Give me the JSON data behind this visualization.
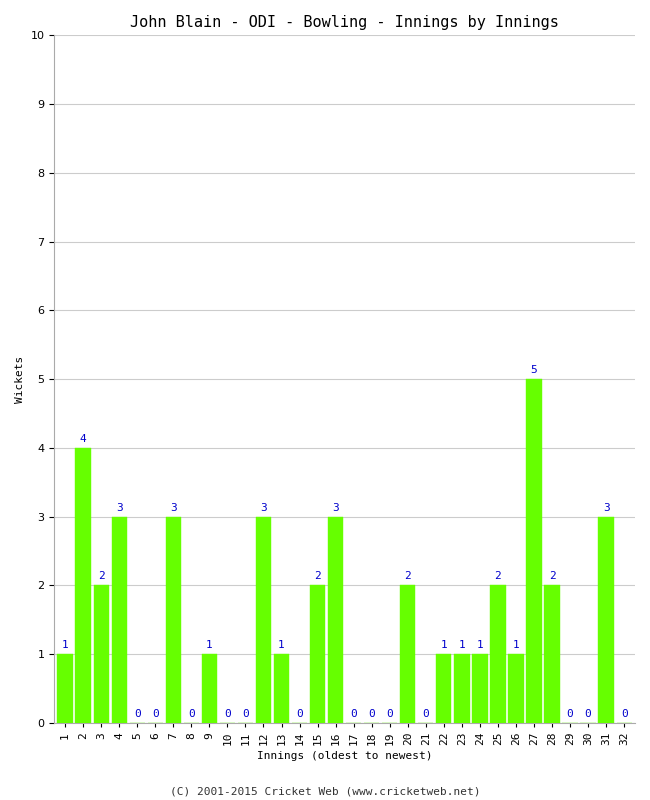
{
  "title": "John Blain - ODI - Bowling - Innings by Innings",
  "xlabel": "Innings (oldest to newest)",
  "ylabel": "Wickets",
  "categories": [
    "1",
    "2",
    "3",
    "4",
    "5",
    "6",
    "7",
    "8",
    "9",
    "10",
    "11",
    "12",
    "13",
    "14",
    "15",
    "16",
    "17",
    "18",
    "19",
    "20",
    "21",
    "22",
    "23",
    "24",
    "25",
    "26",
    "27",
    "28",
    "29",
    "30",
    "31",
    "32"
  ],
  "values": [
    1,
    4,
    2,
    3,
    0,
    0,
    3,
    0,
    1,
    0,
    0,
    3,
    1,
    0,
    2,
    3,
    0,
    0,
    0,
    2,
    0,
    1,
    1,
    1,
    2,
    1,
    5,
    2,
    0,
    0,
    3,
    0
  ],
  "bar_color": "#66ff00",
  "label_color": "#0000cc",
  "ylim": [
    0,
    10
  ],
  "yticks": [
    0,
    1,
    2,
    3,
    4,
    5,
    6,
    7,
    8,
    9,
    10
  ],
  "background_color": "#ffffff",
  "grid_color": "#cccccc",
  "footer": "(C) 2001-2015 Cricket Web (www.cricketweb.net)",
  "title_fontsize": 11,
  "axis_label_fontsize": 8,
  "tick_fontsize": 8,
  "value_label_fontsize": 8,
  "footer_fontsize": 8,
  "bar_width": 0.85
}
